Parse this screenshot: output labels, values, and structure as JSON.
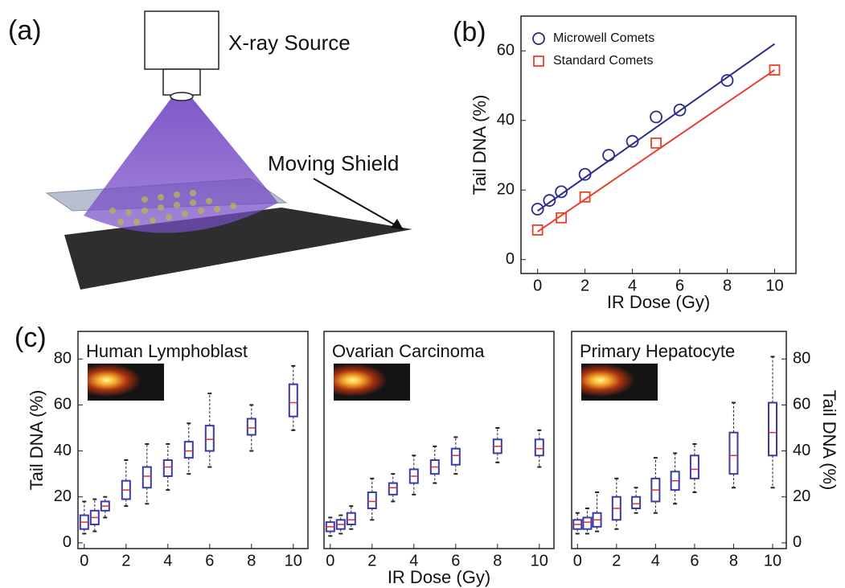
{
  "panel_a": {
    "label": "(a)",
    "source_label": "X-ray Source",
    "shield_label": "Moving Shield"
  },
  "chart_data": [
    {
      "type": "scatter",
      "label": "(b)",
      "xlabel": "IR Dose (Gy)",
      "ylabel": "Tail DNA (%)",
      "xlim": [
        -0.7,
        10.9
      ],
      "ylim": [
        -4,
        70
      ],
      "xticks": [
        0,
        2,
        4,
        6,
        8,
        10
      ],
      "yticks": [
        0,
        20,
        40,
        60
      ],
      "legend": "upper left",
      "series": [
        {
          "name": "Microwell Comets",
          "color": "#2b2b8c",
          "marker": "circle",
          "x": [
            0,
            0.5,
            1,
            2,
            3,
            4,
            5,
            6,
            8
          ],
          "values": [
            14.5,
            17,
            19.5,
            24.5,
            30,
            34,
            41,
            43,
            51.5
          ],
          "fit_x": [
            0,
            10
          ],
          "fit_values": [
            14,
            62
          ]
        },
        {
          "name": "Standard Comets",
          "color": "#e8412c",
          "marker": "square",
          "x": [
            0,
            1,
            2,
            5,
            10
          ],
          "values": [
            8.5,
            12,
            18,
            33.5,
            54.5
          ],
          "fit_x": [
            0,
            10
          ],
          "fit_values": [
            8,
            54.5
          ]
        }
      ]
    },
    {
      "type": "box",
      "label": "(c)",
      "title": "Human Lymphoblast",
      "ylabel": "Tail DNA (%)",
      "xlim": [
        -0.3,
        10.7
      ],
      "ylim": [
        -2.5,
        92
      ],
      "xticks": [
        0,
        2,
        4,
        6,
        8,
        10
      ],
      "yticks": [
        0,
        20,
        40,
        60,
        80
      ],
      "box_color": "#3a3aa8",
      "median_color": "#e03030",
      "x": [
        0,
        0.5,
        1,
        2,
        3,
        4,
        5,
        6,
        8,
        10
      ],
      "whisker_low": [
        4,
        5,
        11,
        16,
        17,
        23,
        30,
        33,
        40,
        49
      ],
      "q1": [
        6,
        8,
        14,
        19,
        24,
        29,
        37,
        40,
        47,
        55
      ],
      "median": [
        9,
        11,
        16,
        23,
        29,
        33,
        40,
        45,
        50,
        61
      ],
      "q3": [
        12,
        14,
        18,
        27,
        33,
        36,
        44,
        51,
        54,
        69
      ],
      "whisker_high": [
        18,
        19,
        20,
        36,
        43,
        43,
        52,
        65,
        60,
        77
      ]
    },
    {
      "type": "box",
      "title": "Ovarian Carcinoma",
      "xlabel": "IR Dose (Gy)",
      "xlim": [
        -0.3,
        10.7
      ],
      "ylim": [
        -2.5,
        92
      ],
      "xticks": [
        0,
        2,
        4,
        6,
        8,
        10
      ],
      "box_color": "#3a3aa8",
      "median_color": "#e03030",
      "x": [
        0,
        0.5,
        1,
        2,
        3,
        4,
        5,
        6,
        8,
        10
      ],
      "whisker_low": [
        3,
        4,
        6,
        10,
        18,
        21,
        26,
        30,
        35,
        33
      ],
      "q1": [
        5,
        6,
        8,
        15,
        21,
        26,
        30,
        34,
        39,
        38
      ],
      "median": [
        7,
        8,
        10,
        18,
        24,
        29,
        33,
        38,
        42,
        41
      ],
      "q3": [
        9,
        10,
        13,
        22,
        26,
        32,
        36,
        41,
        45,
        45
      ],
      "whisker_high": [
        11,
        12,
        16,
        28,
        30,
        38,
        42,
        46,
        50,
        49
      ]
    },
    {
      "type": "box",
      "title": "Primary Hepatocyte",
      "ylabel": "Tail DNA (%)",
      "yaxis": "right",
      "xlim": [
        -0.3,
        10.7
      ],
      "ylim": [
        -2.5,
        92
      ],
      "xticks": [
        0,
        2,
        4,
        6,
        8,
        10
      ],
      "yticks": [
        0,
        20,
        40,
        60,
        80
      ],
      "box_color": "#3a3aa8",
      "median_color": "#e03030",
      "x": [
        0,
        0.5,
        1,
        2,
        3,
        4,
        5,
        6,
        8,
        10
      ],
      "whisker_low": [
        4,
        4,
        5,
        6,
        13,
        13,
        17,
        22,
        24,
        24
      ],
      "q1": [
        6,
        6,
        7,
        10,
        15,
        18,
        23,
        28,
        30,
        38
      ],
      "median": [
        8,
        9,
        10,
        15,
        17,
        23,
        27,
        32,
        38,
        48
      ],
      "q3": [
        10,
        11,
        13,
        20,
        20,
        28,
        31,
        38,
        48,
        61
      ],
      "whisker_high": [
        13,
        15,
        22,
        28,
        24,
        37,
        39,
        43,
        61,
        81
      ]
    }
  ]
}
